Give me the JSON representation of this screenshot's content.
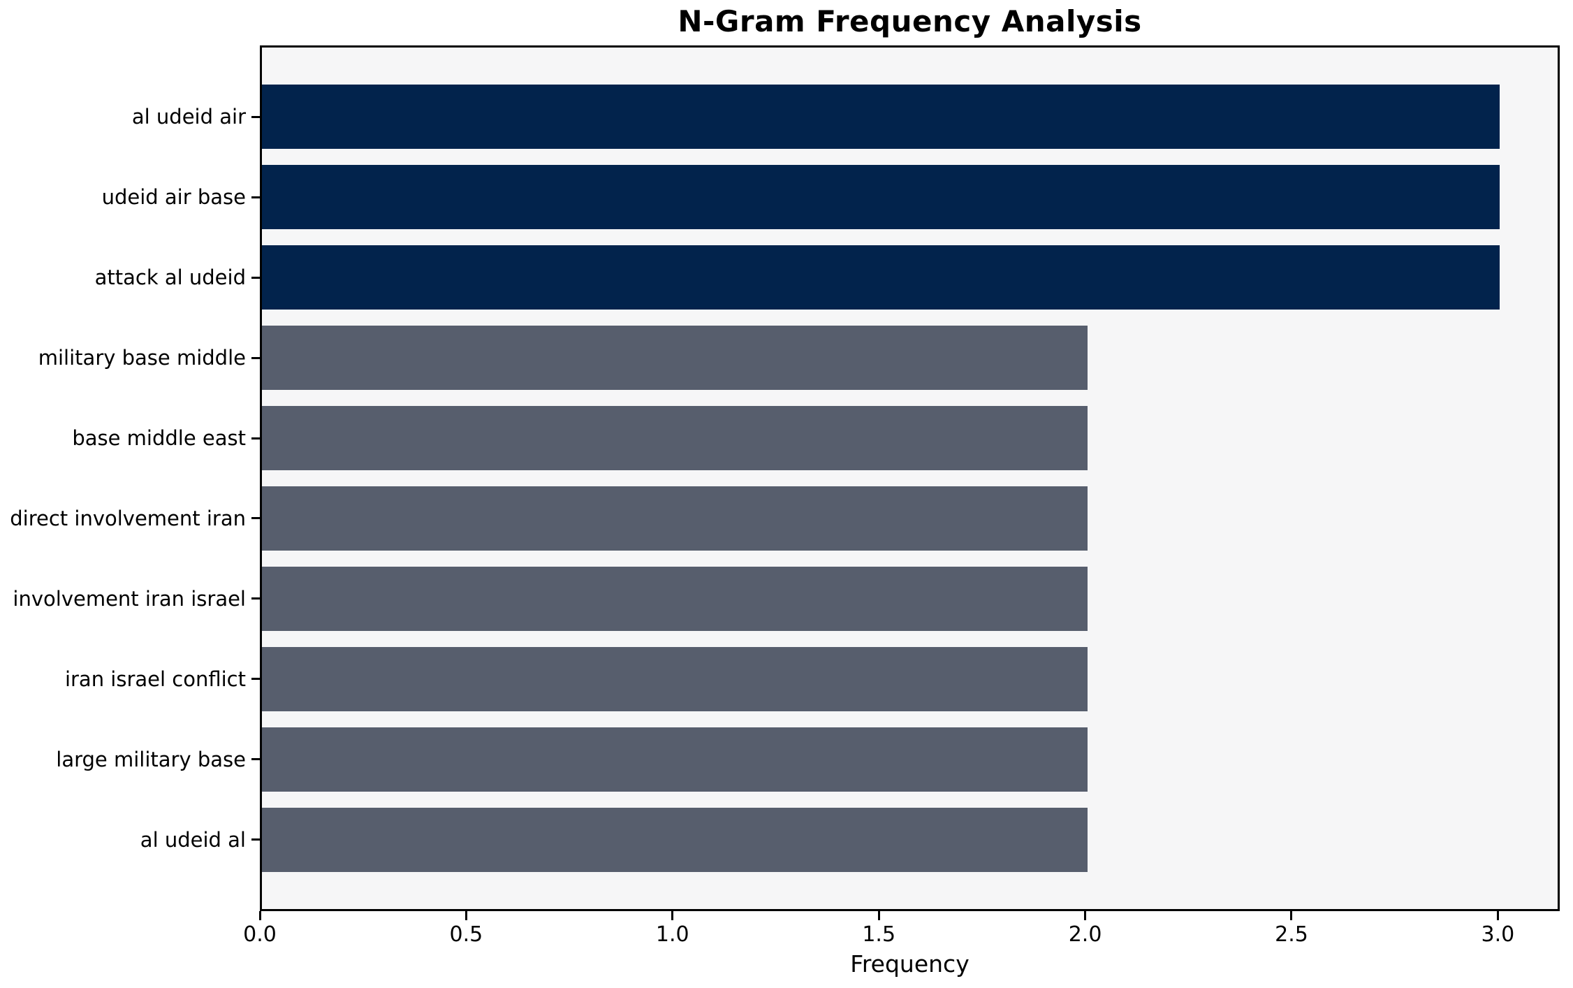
{
  "chart_data": {
    "type": "bar",
    "orientation": "horizontal",
    "title": "N-Gram Frequency Analysis",
    "xlabel": "Frequency",
    "ylabel": "",
    "categories": [
      "al udeid air",
      "udeid air base",
      "attack al udeid",
      "military base middle",
      "base middle east",
      "direct involvement iran",
      "involvement iran israel",
      "iran israel conflict",
      "large military base",
      "al udeid al"
    ],
    "values": [
      3,
      3,
      3,
      2,
      2,
      2,
      2,
      2,
      2,
      2
    ],
    "bar_colors": [
      "#02234c",
      "#02234c",
      "#02234c",
      "#575e6d",
      "#575e6d",
      "#575e6d",
      "#575e6d",
      "#575e6d",
      "#575e6d",
      "#575e6d"
    ],
    "xlim": [
      0,
      3.15
    ],
    "xticks": [
      0.0,
      0.5,
      1.0,
      1.5,
      2.0,
      2.5,
      3.0
    ],
    "xtick_labels": [
      "0.0",
      "0.5",
      "1.0",
      "1.5",
      "2.0",
      "2.5",
      "3.0"
    ],
    "grid": false,
    "legend": null,
    "plot_bg": "#f6f6f7",
    "figure_bg": "#ffffff",
    "spine_color": "#000000"
  }
}
